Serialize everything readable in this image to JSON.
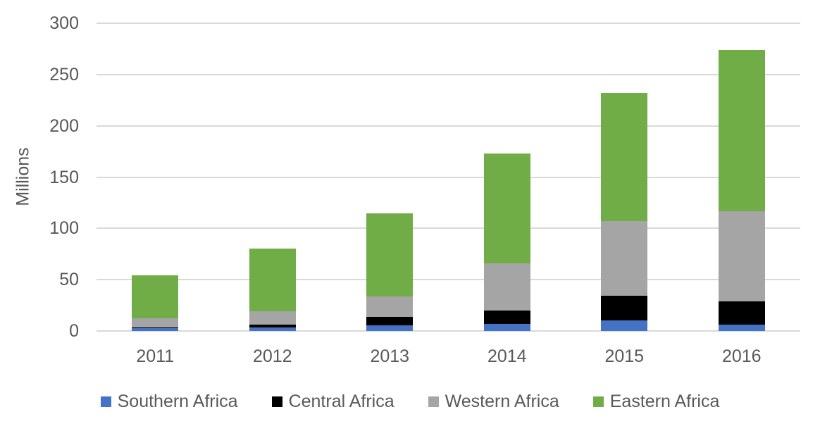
{
  "chart_data": {
    "type": "bar",
    "stacked": true,
    "title": "",
    "xlabel": "",
    "ylabel": "Millions",
    "ylim": [
      0,
      300
    ],
    "y_ticks": [
      0,
      50,
      100,
      150,
      200,
      250,
      300
    ],
    "grid": "horizontal",
    "legend_position": "bottom",
    "categories": [
      "2011",
      "2012",
      "2013",
      "2014",
      "2015",
      "2016"
    ],
    "series": [
      {
        "name": "Southern Africa",
        "color": "#4472C4",
        "values": [
          3,
          3.5,
          5.5,
          7,
          10,
          6
        ]
      },
      {
        "name": "Central Africa",
        "color": "#000000",
        "values": [
          0.5,
          2.5,
          8,
          13,
          24,
          23
        ]
      },
      {
        "name": "Western Africa",
        "color": "#A5A5A5",
        "values": [
          9,
          13.5,
          20,
          46,
          73,
          88
        ]
      },
      {
        "name": "Eastern Africa",
        "color": "#70AD47",
        "values": [
          41.5,
          60.5,
          81.5,
          107,
          125,
          157
        ]
      }
    ],
    "totals": [
      54,
      80,
      115,
      173,
      232,
      274
    ]
  },
  "colors": {
    "gridline": "#D9D9D9",
    "axis_text": "#595959",
    "background": "#FFFFFF"
  }
}
